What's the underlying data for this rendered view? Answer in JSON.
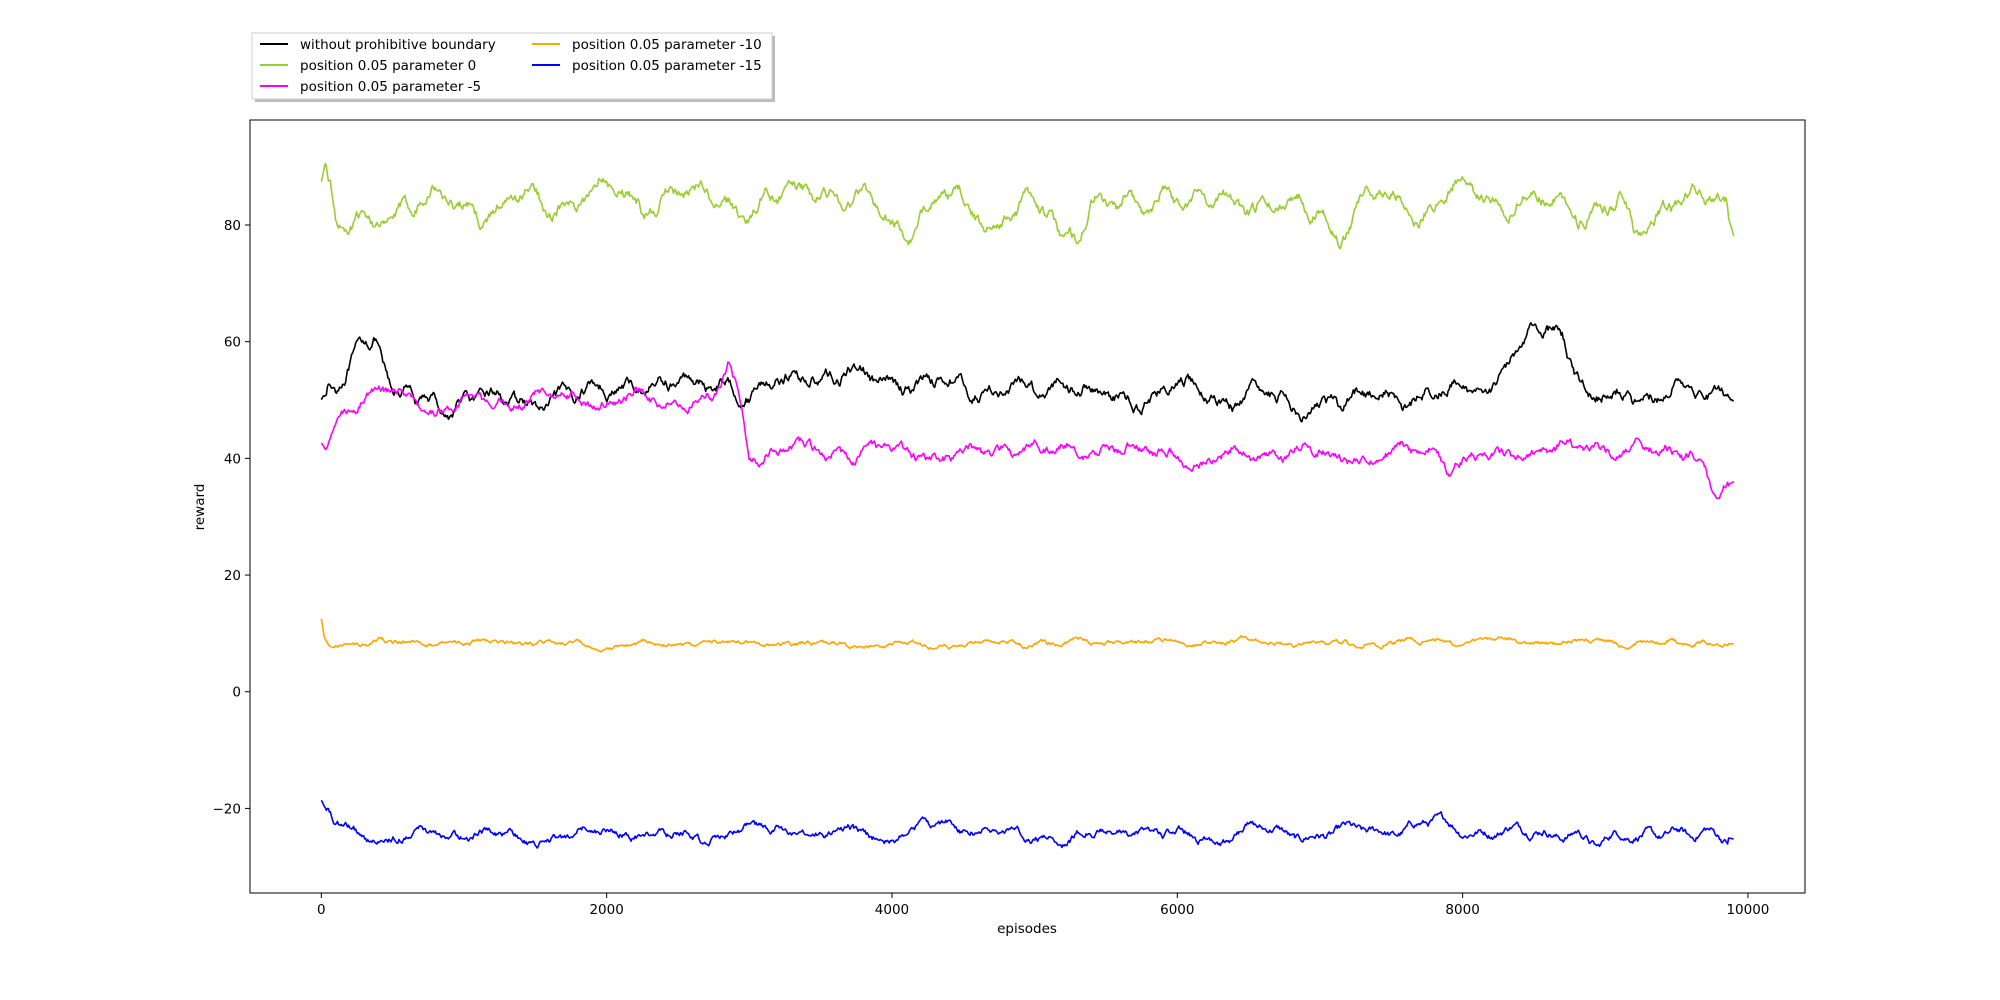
{
  "chart_data": {
    "type": "line",
    "title": "",
    "xlabel": "episodes",
    "ylabel": "reward",
    "xlim": [
      -500,
      10400
    ],
    "ylim": [
      -34.5,
      98
    ],
    "xticks": [
      0,
      2000,
      4000,
      6000,
      8000,
      10000
    ],
    "yticks": [
      -20,
      0,
      20,
      40,
      60,
      80
    ],
    "xtick_labels": [
      "0",
      "2000",
      "4000",
      "6000",
      "8000",
      "10000"
    ],
    "ytick_labels": [
      "−20",
      "0",
      "20",
      "40",
      "60",
      "80"
    ],
    "grid": false,
    "legend_placement": "above plot, top-left, two columns",
    "x_range": [
      0,
      9900
    ],
    "series": [
      {
        "name": "without prohibitive boundary",
        "color": "#000000",
        "keypoints": [
          [
            0,
            50
          ],
          [
            100,
            51
          ],
          [
            200,
            56
          ],
          [
            300,
            60
          ],
          [
            380,
            62
          ],
          [
            450,
            55
          ],
          [
            500,
            50
          ],
          [
            600,
            52
          ],
          [
            700,
            48
          ],
          [
            800,
            50
          ],
          [
            900,
            48
          ],
          [
            1000,
            51
          ],
          [
            1200,
            50
          ],
          [
            1400,
            49
          ],
          [
            1600,
            50
          ],
          [
            1800,
            51
          ],
          [
            2000,
            52
          ],
          [
            2200,
            53
          ],
          [
            2400,
            52
          ],
          [
            2600,
            53
          ],
          [
            2800,
            54
          ],
          [
            2900,
            52
          ],
          [
            3000,
            50
          ],
          [
            3200,
            54
          ],
          [
            3400,
            55
          ],
          [
            3600,
            53
          ],
          [
            3800,
            55
          ],
          [
            4000,
            53
          ],
          [
            4200,
            52
          ],
          [
            4400,
            54
          ],
          [
            4600,
            52
          ],
          [
            4800,
            51
          ],
          [
            5000,
            52
          ],
          [
            5200,
            54
          ],
          [
            5400,
            51
          ],
          [
            5600,
            50
          ],
          [
            5800,
            51
          ],
          [
            6000,
            52
          ],
          [
            6200,
            51
          ],
          [
            6400,
            50
          ],
          [
            6600,
            51
          ],
          [
            6800,
            49
          ],
          [
            7000,
            50
          ],
          [
            7200,
            49
          ],
          [
            7400,
            52
          ],
          [
            7600,
            50
          ],
          [
            7800,
            51
          ],
          [
            8000,
            52
          ],
          [
            8200,
            53
          ],
          [
            8400,
            58
          ],
          [
            8500,
            63
          ],
          [
            8600,
            62
          ],
          [
            8700,
            62
          ],
          [
            8800,
            55
          ],
          [
            8900,
            50
          ],
          [
            9000,
            51
          ],
          [
            9200,
            50
          ],
          [
            9400,
            51
          ],
          [
            9500,
            54
          ],
          [
            9600,
            51
          ],
          [
            9800,
            51
          ],
          [
            9900,
            50
          ]
        ],
        "noise": 1.2,
        "wobble": 1.6
      },
      {
        "name": "position 0.05 parameter 0",
        "color": "#9acd32",
        "keypoints": [
          [
            0,
            88
          ],
          [
            30,
            91
          ],
          [
            60,
            87
          ],
          [
            100,
            80
          ],
          [
            150,
            78
          ],
          [
            300,
            80
          ],
          [
            500,
            82
          ],
          [
            700,
            85
          ],
          [
            1000,
            83
          ],
          [
            1200,
            83
          ],
          [
            1500,
            84
          ],
          [
            1800,
            84
          ],
          [
            2000,
            87
          ],
          [
            2200,
            84
          ],
          [
            2500,
            85
          ],
          [
            2800,
            84
          ],
          [
            3000,
            83
          ],
          [
            3300,
            85
          ],
          [
            3500,
            87
          ],
          [
            3700,
            84
          ],
          [
            3900,
            83
          ],
          [
            4100,
            79
          ],
          [
            4300,
            84
          ],
          [
            4500,
            83
          ],
          [
            4700,
            81
          ],
          [
            4900,
            83
          ],
          [
            5100,
            82
          ],
          [
            5200,
            77
          ],
          [
            5400,
            84
          ],
          [
            5600,
            82
          ],
          [
            5800,
            83
          ],
          [
            5900,
            88
          ],
          [
            6100,
            83
          ],
          [
            6400,
            85
          ],
          [
            6600,
            83
          ],
          [
            6800,
            83
          ],
          [
            7000,
            84
          ],
          [
            7150,
            79
          ],
          [
            7300,
            84
          ],
          [
            7500,
            85
          ],
          [
            7700,
            82
          ],
          [
            7900,
            86
          ],
          [
            8100,
            85
          ],
          [
            8300,
            85
          ],
          [
            8500,
            84
          ],
          [
            8700,
            84
          ],
          [
            8900,
            82
          ],
          [
            9100,
            84
          ],
          [
            9200,
            78
          ],
          [
            9400,
            83
          ],
          [
            9500,
            86
          ],
          [
            9700,
            84
          ],
          [
            9850,
            82
          ],
          [
            9900,
            78
          ]
        ],
        "noise": 1.3,
        "wobble": 2.6
      },
      {
        "name": "position 0.05 parameter -5",
        "color": "#ff00ff",
        "keypoints": [
          [
            0,
            43
          ],
          [
            30,
            41.5
          ],
          [
            100,
            47
          ],
          [
            200,
            49
          ],
          [
            400,
            51
          ],
          [
            600,
            52
          ],
          [
            700,
            50
          ],
          [
            800,
            47
          ],
          [
            900,
            48
          ],
          [
            1000,
            50
          ],
          [
            1200,
            50
          ],
          [
            1400,
            50
          ],
          [
            1600,
            50
          ],
          [
            1800,
            51
          ],
          [
            2000,
            49
          ],
          [
            2200,
            51
          ],
          [
            2400,
            50
          ],
          [
            2600,
            50
          ],
          [
            2750,
            50
          ],
          [
            2850,
            56
          ],
          [
            2900,
            53
          ],
          [
            2950,
            47
          ],
          [
            3000,
            41
          ],
          [
            3300,
            41
          ],
          [
            3600,
            41
          ],
          [
            3900,
            41
          ],
          [
            4200,
            41
          ],
          [
            4500,
            40
          ],
          [
            4800,
            42
          ],
          [
            5100,
            41
          ],
          [
            5400,
            42
          ],
          [
            5700,
            41
          ],
          [
            6000,
            41
          ],
          [
            6200,
            39
          ],
          [
            6400,
            41
          ],
          [
            6700,
            41
          ],
          [
            7000,
            41
          ],
          [
            7300,
            40
          ],
          [
            7600,
            41
          ],
          [
            7800,
            42
          ],
          [
            7900,
            39
          ],
          [
            8200,
            40
          ],
          [
            8500,
            41
          ],
          [
            8800,
            41
          ],
          [
            9100,
            42
          ],
          [
            9400,
            41
          ],
          [
            9600,
            41
          ],
          [
            9700,
            38
          ],
          [
            9750,
            35
          ],
          [
            9850,
            35
          ],
          [
            9900,
            35.5
          ]
        ],
        "noise": 1.0,
        "wobble": 1.4
      },
      {
        "name": "position 0.05 parameter -10",
        "color": "#ffa500",
        "keypoints": [
          [
            0,
            12.5
          ],
          [
            20,
            9.5
          ],
          [
            50,
            8
          ],
          [
            300,
            8.5
          ],
          [
            600,
            8.3
          ],
          [
            1000,
            8.2
          ],
          [
            1500,
            8.4
          ],
          [
            2000,
            7.8
          ],
          [
            2500,
            8.3
          ],
          [
            3000,
            8.2
          ],
          [
            3500,
            8.1
          ],
          [
            4000,
            7.9
          ],
          [
            4500,
            8.3
          ],
          [
            5000,
            8.4
          ],
          [
            5500,
            8.5
          ],
          [
            6000,
            8.4
          ],
          [
            6500,
            8.6
          ],
          [
            7000,
            8.2
          ],
          [
            7500,
            8.5
          ],
          [
            8000,
            8.6
          ],
          [
            8500,
            8.4
          ],
          [
            9000,
            8.5
          ],
          [
            9500,
            8.3
          ],
          [
            9900,
            8.4
          ]
        ],
        "noise": 0.45,
        "wobble": 0.55
      },
      {
        "name": "position 0.05 parameter -15",
        "color": "#0000ff",
        "keypoints": [
          [
            0,
            -19
          ],
          [
            30,
            -20.5
          ],
          [
            100,
            -23
          ],
          [
            300,
            -24
          ],
          [
            500,
            -25
          ],
          [
            700,
            -24.5
          ],
          [
            1000,
            -24.5
          ],
          [
            1300,
            -25
          ],
          [
            1500,
            -25.5
          ],
          [
            1800,
            -24.5
          ],
          [
            2000,
            -23.5
          ],
          [
            2300,
            -24.5
          ],
          [
            2600,
            -25
          ],
          [
            2800,
            -24
          ],
          [
            3000,
            -24
          ],
          [
            3200,
            -23.5
          ],
          [
            3400,
            -24.5
          ],
          [
            3600,
            -24.5
          ],
          [
            3800,
            -24
          ],
          [
            4000,
            -25
          ],
          [
            4200,
            -23.5
          ],
          [
            4400,
            -22.5
          ],
          [
            4600,
            -23.5
          ],
          [
            4800,
            -24.5
          ],
          [
            5000,
            -24.5
          ],
          [
            5200,
            -25
          ],
          [
            5400,
            -24.5
          ],
          [
            5600,
            -24
          ],
          [
            5800,
            -23.5
          ],
          [
            6000,
            -25
          ],
          [
            6300,
            -25
          ],
          [
            6500,
            -23.5
          ],
          [
            6800,
            -24.5
          ],
          [
            7000,
            -24.5
          ],
          [
            7300,
            -24
          ],
          [
            7600,
            -23.5
          ],
          [
            7800,
            -22.5
          ],
          [
            8000,
            -23.5
          ],
          [
            8300,
            -24
          ],
          [
            8600,
            -24
          ],
          [
            8800,
            -24
          ],
          [
            8950,
            -27
          ],
          [
            9100,
            -24.5
          ],
          [
            9300,
            -24
          ],
          [
            9500,
            -24.5
          ],
          [
            9600,
            -25.5
          ],
          [
            9700,
            -24
          ],
          [
            9900,
            -25
          ]
        ],
        "noise": 0.8,
        "wobble": 1.1
      }
    ]
  }
}
